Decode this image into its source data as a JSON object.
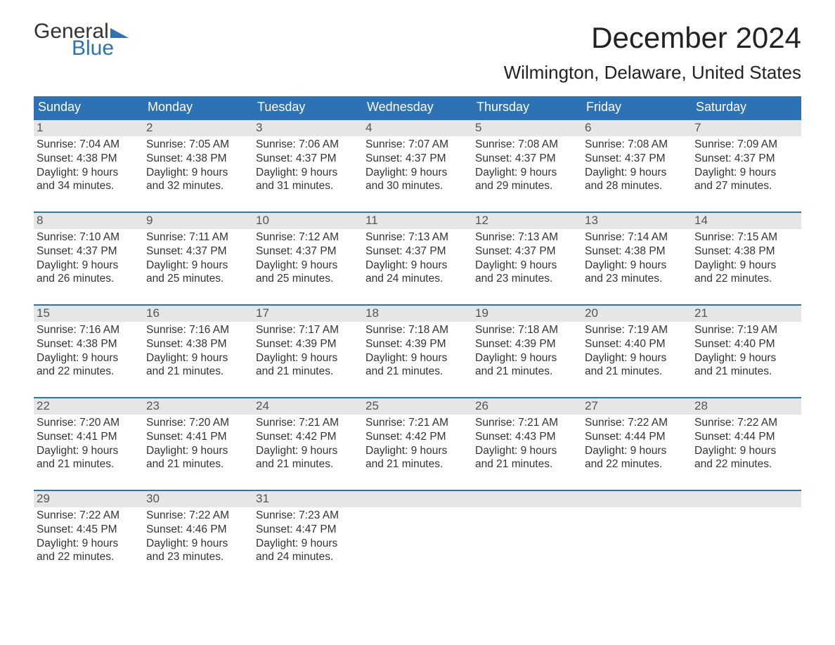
{
  "logo": {
    "word1": "General",
    "word2": "Blue",
    "flag_color": "#2d72b5"
  },
  "title": "December 2024",
  "subtitle": "Wilmington, Delaware, United States",
  "colors": {
    "header_bg": "#2d72b5",
    "header_text": "#ffffff",
    "daynum_bg": "#e6e6e6",
    "daynum_text": "#555555",
    "body_text": "#333333",
    "week_border": "#2d72b5",
    "page_bg": "#ffffff"
  },
  "typography": {
    "title_fontsize": 42,
    "subtitle_fontsize": 26,
    "dow_fontsize": 18,
    "daynum_fontsize": 17,
    "body_fontsize": 15.5
  },
  "days_of_week": [
    "Sunday",
    "Monday",
    "Tuesday",
    "Wednesday",
    "Thursday",
    "Friday",
    "Saturday"
  ],
  "weeks": [
    [
      {
        "num": "1",
        "sunrise": "Sunrise: 7:04 AM",
        "sunset": "Sunset: 4:38 PM",
        "d1": "Daylight: 9 hours",
        "d2": "and 34 minutes."
      },
      {
        "num": "2",
        "sunrise": "Sunrise: 7:05 AM",
        "sunset": "Sunset: 4:38 PM",
        "d1": "Daylight: 9 hours",
        "d2": "and 32 minutes."
      },
      {
        "num": "3",
        "sunrise": "Sunrise: 7:06 AM",
        "sunset": "Sunset: 4:37 PM",
        "d1": "Daylight: 9 hours",
        "d2": "and 31 minutes."
      },
      {
        "num": "4",
        "sunrise": "Sunrise: 7:07 AM",
        "sunset": "Sunset: 4:37 PM",
        "d1": "Daylight: 9 hours",
        "d2": "and 30 minutes."
      },
      {
        "num": "5",
        "sunrise": "Sunrise: 7:08 AM",
        "sunset": "Sunset: 4:37 PM",
        "d1": "Daylight: 9 hours",
        "d2": "and 29 minutes."
      },
      {
        "num": "6",
        "sunrise": "Sunrise: 7:08 AM",
        "sunset": "Sunset: 4:37 PM",
        "d1": "Daylight: 9 hours",
        "d2": "and 28 minutes."
      },
      {
        "num": "7",
        "sunrise": "Sunrise: 7:09 AM",
        "sunset": "Sunset: 4:37 PM",
        "d1": "Daylight: 9 hours",
        "d2": "and 27 minutes."
      }
    ],
    [
      {
        "num": "8",
        "sunrise": "Sunrise: 7:10 AM",
        "sunset": "Sunset: 4:37 PM",
        "d1": "Daylight: 9 hours",
        "d2": "and 26 minutes."
      },
      {
        "num": "9",
        "sunrise": "Sunrise: 7:11 AM",
        "sunset": "Sunset: 4:37 PM",
        "d1": "Daylight: 9 hours",
        "d2": "and 25 minutes."
      },
      {
        "num": "10",
        "sunrise": "Sunrise: 7:12 AM",
        "sunset": "Sunset: 4:37 PM",
        "d1": "Daylight: 9 hours",
        "d2": "and 25 minutes."
      },
      {
        "num": "11",
        "sunrise": "Sunrise: 7:13 AM",
        "sunset": "Sunset: 4:37 PM",
        "d1": "Daylight: 9 hours",
        "d2": "and 24 minutes."
      },
      {
        "num": "12",
        "sunrise": "Sunrise: 7:13 AM",
        "sunset": "Sunset: 4:37 PM",
        "d1": "Daylight: 9 hours",
        "d2": "and 23 minutes."
      },
      {
        "num": "13",
        "sunrise": "Sunrise: 7:14 AM",
        "sunset": "Sunset: 4:38 PM",
        "d1": "Daylight: 9 hours",
        "d2": "and 23 minutes."
      },
      {
        "num": "14",
        "sunrise": "Sunrise: 7:15 AM",
        "sunset": "Sunset: 4:38 PM",
        "d1": "Daylight: 9 hours",
        "d2": "and 22 minutes."
      }
    ],
    [
      {
        "num": "15",
        "sunrise": "Sunrise: 7:16 AM",
        "sunset": "Sunset: 4:38 PM",
        "d1": "Daylight: 9 hours",
        "d2": "and 22 minutes."
      },
      {
        "num": "16",
        "sunrise": "Sunrise: 7:16 AM",
        "sunset": "Sunset: 4:38 PM",
        "d1": "Daylight: 9 hours",
        "d2": "and 21 minutes."
      },
      {
        "num": "17",
        "sunrise": "Sunrise: 7:17 AM",
        "sunset": "Sunset: 4:39 PM",
        "d1": "Daylight: 9 hours",
        "d2": "and 21 minutes."
      },
      {
        "num": "18",
        "sunrise": "Sunrise: 7:18 AM",
        "sunset": "Sunset: 4:39 PM",
        "d1": "Daylight: 9 hours",
        "d2": "and 21 minutes."
      },
      {
        "num": "19",
        "sunrise": "Sunrise: 7:18 AM",
        "sunset": "Sunset: 4:39 PM",
        "d1": "Daylight: 9 hours",
        "d2": "and 21 minutes."
      },
      {
        "num": "20",
        "sunrise": "Sunrise: 7:19 AM",
        "sunset": "Sunset: 4:40 PM",
        "d1": "Daylight: 9 hours",
        "d2": "and 21 minutes."
      },
      {
        "num": "21",
        "sunrise": "Sunrise: 7:19 AM",
        "sunset": "Sunset: 4:40 PM",
        "d1": "Daylight: 9 hours",
        "d2": "and 21 minutes."
      }
    ],
    [
      {
        "num": "22",
        "sunrise": "Sunrise: 7:20 AM",
        "sunset": "Sunset: 4:41 PM",
        "d1": "Daylight: 9 hours",
        "d2": "and 21 minutes."
      },
      {
        "num": "23",
        "sunrise": "Sunrise: 7:20 AM",
        "sunset": "Sunset: 4:41 PM",
        "d1": "Daylight: 9 hours",
        "d2": "and 21 minutes."
      },
      {
        "num": "24",
        "sunrise": "Sunrise: 7:21 AM",
        "sunset": "Sunset: 4:42 PM",
        "d1": "Daylight: 9 hours",
        "d2": "and 21 minutes."
      },
      {
        "num": "25",
        "sunrise": "Sunrise: 7:21 AM",
        "sunset": "Sunset: 4:42 PM",
        "d1": "Daylight: 9 hours",
        "d2": "and 21 minutes."
      },
      {
        "num": "26",
        "sunrise": "Sunrise: 7:21 AM",
        "sunset": "Sunset: 4:43 PM",
        "d1": "Daylight: 9 hours",
        "d2": "and 21 minutes."
      },
      {
        "num": "27",
        "sunrise": "Sunrise: 7:22 AM",
        "sunset": "Sunset: 4:44 PM",
        "d1": "Daylight: 9 hours",
        "d2": "and 22 minutes."
      },
      {
        "num": "28",
        "sunrise": "Sunrise: 7:22 AM",
        "sunset": "Sunset: 4:44 PM",
        "d1": "Daylight: 9 hours",
        "d2": "and 22 minutes."
      }
    ],
    [
      {
        "num": "29",
        "sunrise": "Sunrise: 7:22 AM",
        "sunset": "Sunset: 4:45 PM",
        "d1": "Daylight: 9 hours",
        "d2": "and 22 minutes."
      },
      {
        "num": "30",
        "sunrise": "Sunrise: 7:22 AM",
        "sunset": "Sunset: 4:46 PM",
        "d1": "Daylight: 9 hours",
        "d2": "and 23 minutes."
      },
      {
        "num": "31",
        "sunrise": "Sunrise: 7:23 AM",
        "sunset": "Sunset: 4:47 PM",
        "d1": "Daylight: 9 hours",
        "d2": "and 24 minutes."
      },
      null,
      null,
      null,
      null
    ]
  ]
}
